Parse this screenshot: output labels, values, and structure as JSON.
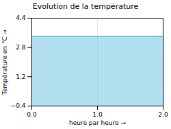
{
  "chart_data": {
    "type": "area",
    "title": "Evolution de la température",
    "xlabel": "heure par heure",
    "ylabel": "Température en °C",
    "x": [
      0,
      2
    ],
    "values": [
      3.4,
      3.4
    ],
    "color": "#55bbdd",
    "xlim": [
      0,
      2
    ],
    "ylim": [
      -0.4,
      4.4
    ],
    "xticks": [
      0,
      1,
      2
    ],
    "yticks": [
      -0.4,
      1.2,
      2.8,
      4.4
    ],
    "grid": "x"
  }
}
